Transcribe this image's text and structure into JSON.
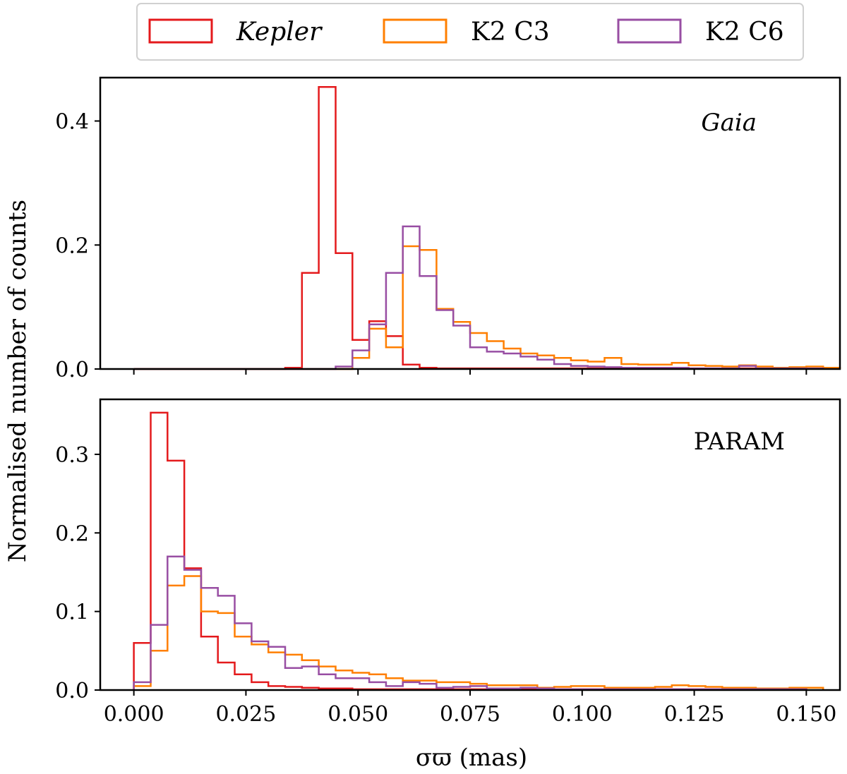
{
  "chart_data": [
    {
      "type": "histogram-step",
      "panel_label": "Gaia",
      "panel_label_italic": true,
      "xlabel": "σϖ (mas)",
      "ylabel": "Normalised number of counts",
      "xlim": [
        -0.0075,
        0.1575
      ],
      "ylim": [
        0,
        0.47
      ],
      "x_ticks": [
        "0.000",
        "0.025",
        "0.050",
        "0.075",
        "0.100",
        "0.125",
        "0.150"
      ],
      "y_ticks": [
        "0.0",
        "0.2",
        "0.4"
      ],
      "y_tick_values": [
        0.0,
        0.2,
        0.4
      ],
      "bin_start": 0.0,
      "bin_width": 0.00375,
      "series": [
        {
          "name": "Kepler",
          "color": "#e41a1c",
          "values": [
            0,
            0,
            0,
            0,
            0,
            0,
            0,
            0,
            0,
            0.002,
            0.155,
            0.455,
            0.187,
            0.047,
            0.077,
            0.053,
            0.007,
            0.002,
            0.001,
            0.001,
            0.001,
            0.001,
            0.001,
            0.001,
            0.001,
            0.001,
            0.001,
            0.001,
            0.001,
            0.001,
            0.001,
            0.001,
            0.001,
            0.001,
            0.001,
            0.001,
            0.001,
            0.001,
            0.001,
            0.001
          ]
        },
        {
          "name": "K2 C3",
          "color": "#ff7f00",
          "values": [
            0,
            0,
            0,
            0,
            0,
            0,
            0,
            0,
            0,
            0,
            0,
            0,
            0,
            0.018,
            0.065,
            0.035,
            0.198,
            0.192,
            0.097,
            0.076,
            0.058,
            0.045,
            0.033,
            0.025,
            0.022,
            0.018,
            0.014,
            0.012,
            0.018,
            0.008,
            0.007,
            0.007,
            0.01,
            0.006,
            0.005,
            0.004,
            0.006,
            0.004,
            0.002,
            0.003,
            0.004,
            0.002
          ]
        },
        {
          "name": "K2 C6",
          "color": "#984ea3",
          "values": [
            0,
            0,
            0,
            0,
            0,
            0,
            0,
            0,
            0,
            0,
            0,
            0,
            0.004,
            0.03,
            0.072,
            0.155,
            0.23,
            0.15,
            0.095,
            0.07,
            0.035,
            0.028,
            0.025,
            0.02,
            0.015,
            0.008,
            0.005,
            0.004,
            0.003,
            0.002,
            0.002,
            0.002,
            0.002,
            0.001,
            0.001,
            0.001,
            0.005,
            0.001,
            0.001,
            0.001,
            0.001
          ]
        }
      ]
    },
    {
      "type": "histogram-step",
      "panel_label": "PARAM",
      "panel_label_italic": false,
      "xlabel": "σϖ (mas)",
      "ylabel": "Normalised number of counts",
      "xlim": [
        -0.0075,
        0.1575
      ],
      "ylim": [
        0,
        0.37
      ],
      "x_ticks": [
        "0.000",
        "0.025",
        "0.050",
        "0.075",
        "0.100",
        "0.125",
        "0.150"
      ],
      "y_ticks": [
        "0.0",
        "0.1",
        "0.2",
        "0.3"
      ],
      "y_tick_values": [
        0.0,
        0.1,
        0.2,
        0.3
      ],
      "bin_start": 0.0,
      "bin_width": 0.00375,
      "series": [
        {
          "name": "Kepler",
          "color": "#e41a1c",
          "values": [
            0.06,
            0.353,
            0.292,
            0.155,
            0.068,
            0.035,
            0.02,
            0.01,
            0.005,
            0.004,
            0.003,
            0.002,
            0.002,
            0.001,
            0.001,
            0.001,
            0.001,
            0.001,
            0.001,
            0.001,
            0.001,
            0.001,
            0.001,
            0.001,
            0.001,
            0.001,
            0.001,
            0.001,
            0.001,
            0.001,
            0.001,
            0.001,
            0.001,
            0.001,
            0.001,
            0.001,
            0.001,
            0.001,
            0.001,
            0.001
          ]
        },
        {
          "name": "K2 C3",
          "color": "#ff7f00",
          "values": [
            0.005,
            0.05,
            0.133,
            0.145,
            0.1,
            0.098,
            0.068,
            0.058,
            0.048,
            0.045,
            0.038,
            0.03,
            0.025,
            0.022,
            0.02,
            0.015,
            0.012,
            0.012,
            0.01,
            0.01,
            0.008,
            0.006,
            0.006,
            0.006,
            0.003,
            0.004,
            0.005,
            0.005,
            0.003,
            0.003,
            0.003,
            0.004,
            0.006,
            0.005,
            0.004,
            0.003,
            0.003,
            0.002,
            0.002,
            0.003,
            0.003
          ]
        },
        {
          "name": "K2 C6",
          "color": "#984ea3",
          "values": [
            0.01,
            0.083,
            0.17,
            0.153,
            0.13,
            0.12,
            0.085,
            0.062,
            0.055,
            0.028,
            0.03,
            0.02,
            0.015,
            0.015,
            0.01,
            0.005,
            0.01,
            0.008,
            0.003,
            0.004,
            0.005,
            0.002,
            0.002,
            0.003,
            0.002,
            0.001,
            0.001,
            0.001,
            0.001,
            0.001,
            0.001,
            0.001,
            0.001,
            0.001,
            0.001,
            0.001,
            0.001,
            0.001,
            0.001,
            0.001
          ]
        }
      ]
    }
  ],
  "legend": [
    {
      "label": "Kepler",
      "italic": true,
      "color": "#e41a1c"
    },
    {
      "label": "K2 C3",
      "italic": false,
      "color": "#ff7f00"
    },
    {
      "label": "K2 C6",
      "italic": false,
      "color": "#984ea3"
    }
  ]
}
